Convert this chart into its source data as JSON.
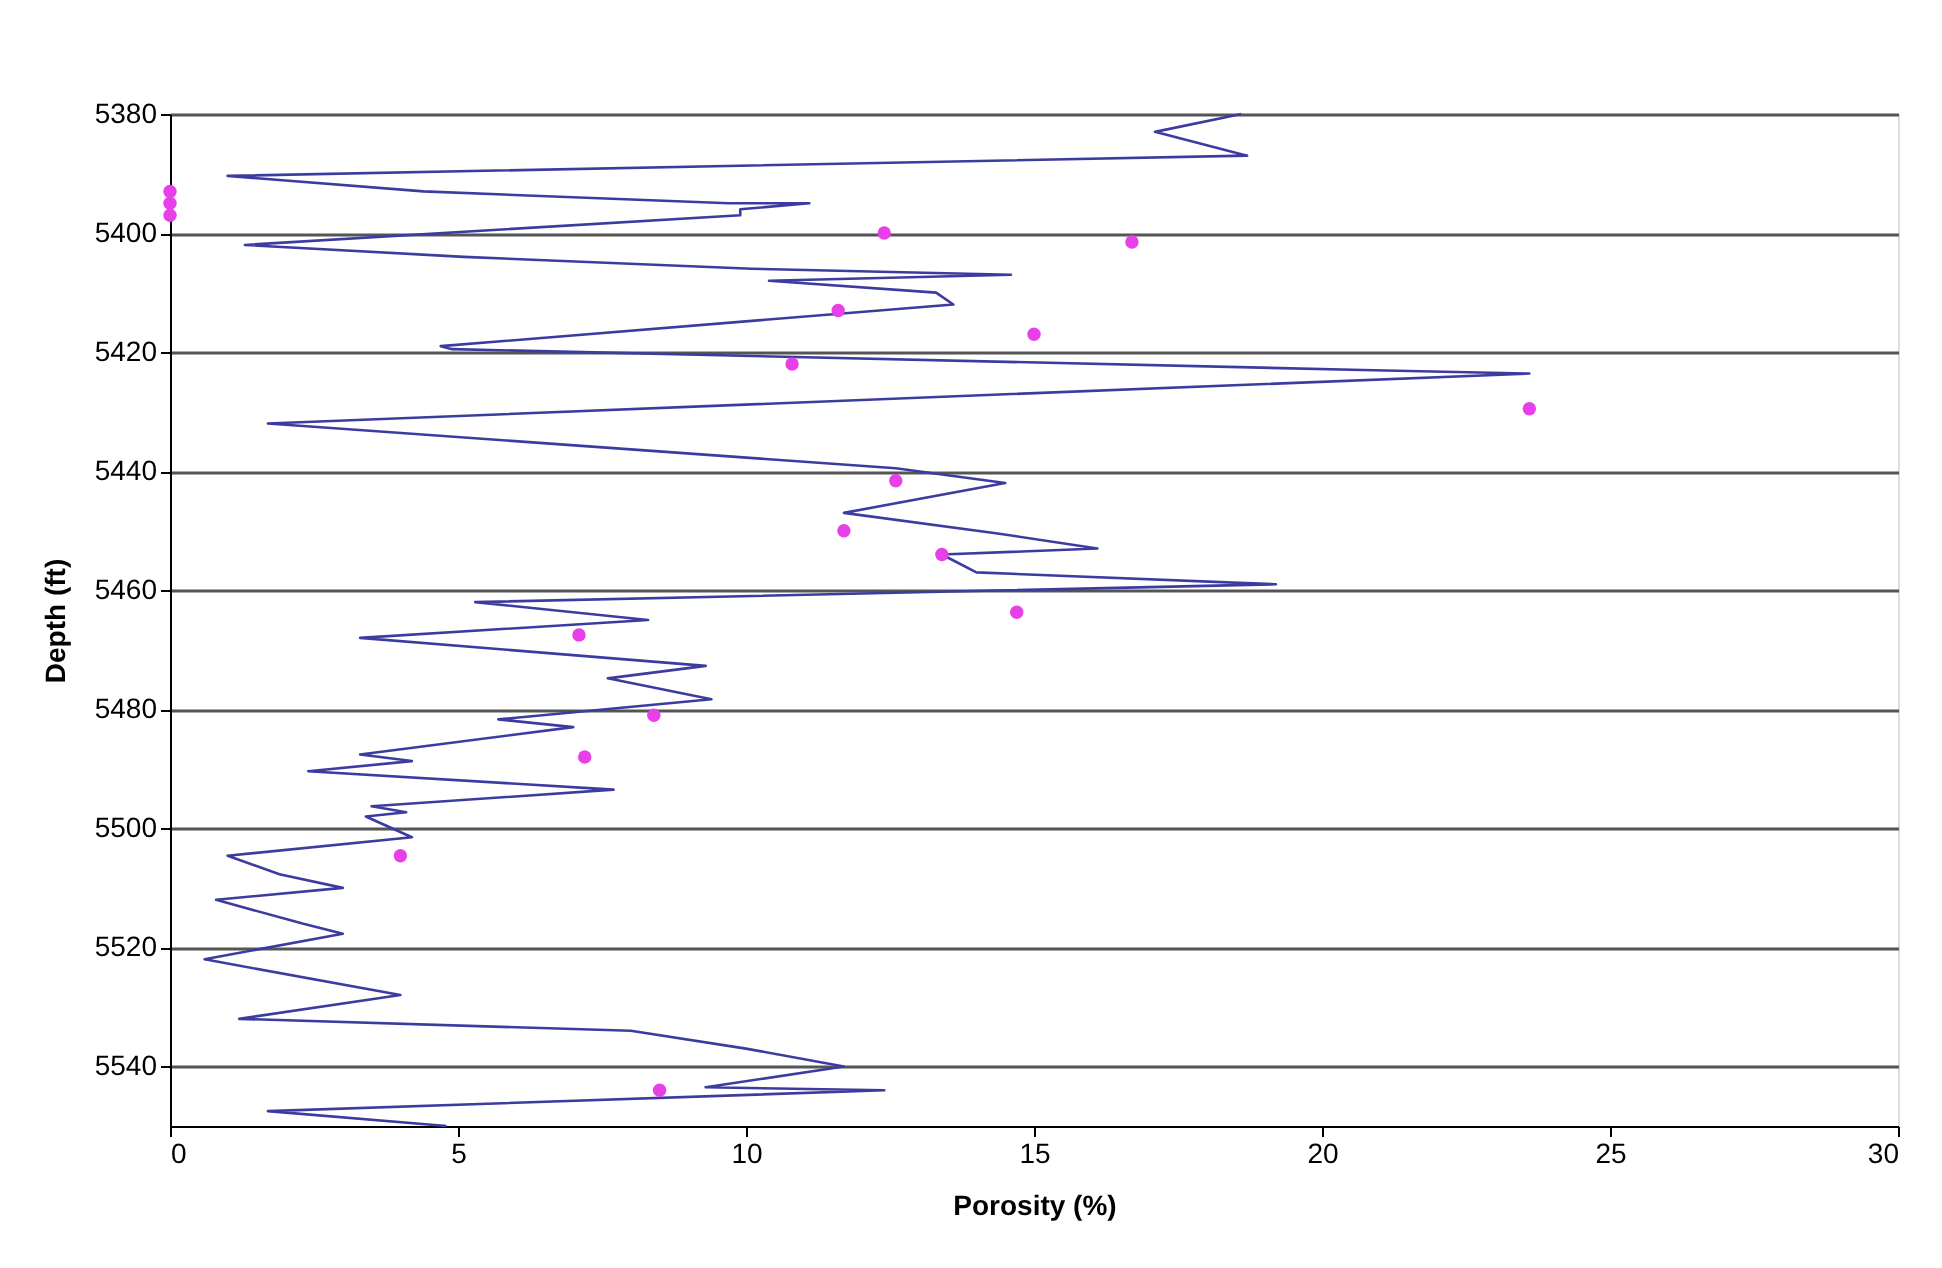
{
  "chart_data": {
    "type": "line",
    "xlabel": "Porosity (%)",
    "ylabel": "Depth (ft)",
    "xlim": [
      0,
      30
    ],
    "xticks": [
      0,
      5,
      10,
      15,
      20,
      25,
      30
    ],
    "ylim": [
      5550,
      5380
    ],
    "yticks": [
      5380,
      5400,
      5420,
      5440,
      5460,
      5480,
      5500,
      5520,
      5540
    ],
    "grid": "y",
    "line_style": "solid",
    "series": [
      {
        "color": "#3c3ca0",
        "marker": "none",
        "x": [
          18.6,
          17.1,
          18.7,
          1.0,
          4.4,
          9.7,
          11.1,
          9.9,
          9.9,
          1.3,
          5.1,
          10.1,
          14.6,
          10.4,
          13.3,
          13.6,
          4.7,
          4.9,
          20.7,
          23.6,
          1.7,
          12.6,
          14.5,
          11.7,
          14.4,
          16.1,
          13.4,
          14.0,
          19.2,
          5.3,
          8.3,
          3.3,
          9.3,
          7.6,
          9.4,
          5.7,
          7.0,
          3.3,
          4.2,
          2.4,
          7.7,
          3.5,
          4.1,
          3.4,
          4.2,
          1.0,
          1.9,
          3.0,
          0.8,
          2.3,
          3.0,
          0.6,
          4.0,
          1.2,
          8.0,
          10.0,
          11.7,
          9.3,
          12.4,
          1.7,
          4.8
        ],
        "values": [
          5380,
          5383,
          5387,
          5390.4,
          5393,
          5395,
          5395,
          5396,
          5397,
          5402,
          5404,
          5406,
          5407,
          5408,
          5410,
          5412,
          5419,
          5419.5,
          5423,
          5423.6,
          5432,
          5439.5,
          5442,
          5447,
          5450.5,
          5453,
          5454,
          5457,
          5459,
          5462,
          5465,
          5468,
          5472.7,
          5474.8,
          5478.3,
          5481.7,
          5483,
          5487.6,
          5488.7,
          5490.4,
          5493.5,
          5496.3,
          5497.3,
          5498,
          5501.5,
          5504.6,
          5507.7,
          5510,
          5512,
          5516,
          5517.7,
          5522,
          5528,
          5532,
          5534,
          5537,
          5540,
          5543.5,
          5544,
          5547.5,
          5550
        ]
      },
      {
        "type": "scatter",
        "color": "#e840e8",
        "marker": "circle",
        "x": [
          0,
          0,
          0,
          12.4,
          16.7,
          11.6,
          15.0,
          10.8,
          23.6,
          12.6,
          11.7,
          13.4,
          14.7,
          7.1,
          8.4,
          7.2,
          4.0,
          8.5
        ],
        "values": [
          5393,
          5395,
          5397,
          5400,
          5401.5,
          5413,
          5417,
          5422,
          5429.5,
          5441.6,
          5450,
          5454,
          5463.7,
          5467.5,
          5481,
          5488,
          5504.6,
          5544
        ]
      }
    ]
  }
}
